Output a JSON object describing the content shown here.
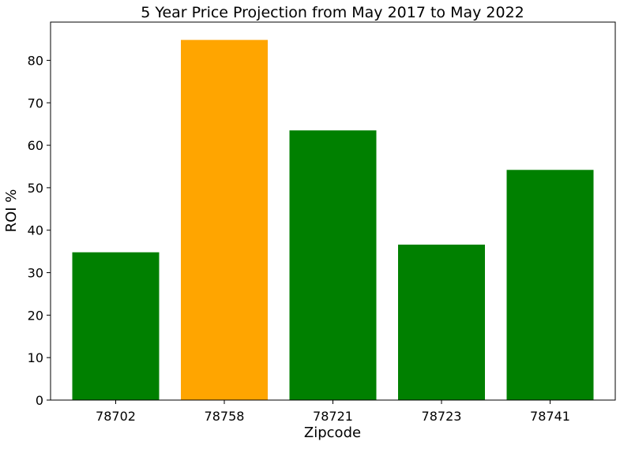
{
  "chart_data": {
    "type": "bar",
    "title": "5 Year Price Projection from May 2017 to May 2022",
    "xlabel": "Zipcode",
    "ylabel": "ROI %",
    "categories": [
      "78702",
      "78758",
      "78721",
      "78723",
      "78741"
    ],
    "values": [
      34.8,
      84.8,
      63.5,
      36.6,
      54.2
    ],
    "bar_colors": [
      "#008000",
      "#ffa500",
      "#008000",
      "#008000",
      "#008000"
    ],
    "ylim": [
      0,
      89
    ],
    "yticks": [
      0,
      10,
      20,
      30,
      40,
      50,
      60,
      70,
      80
    ],
    "grid": false,
    "legend": "none"
  }
}
